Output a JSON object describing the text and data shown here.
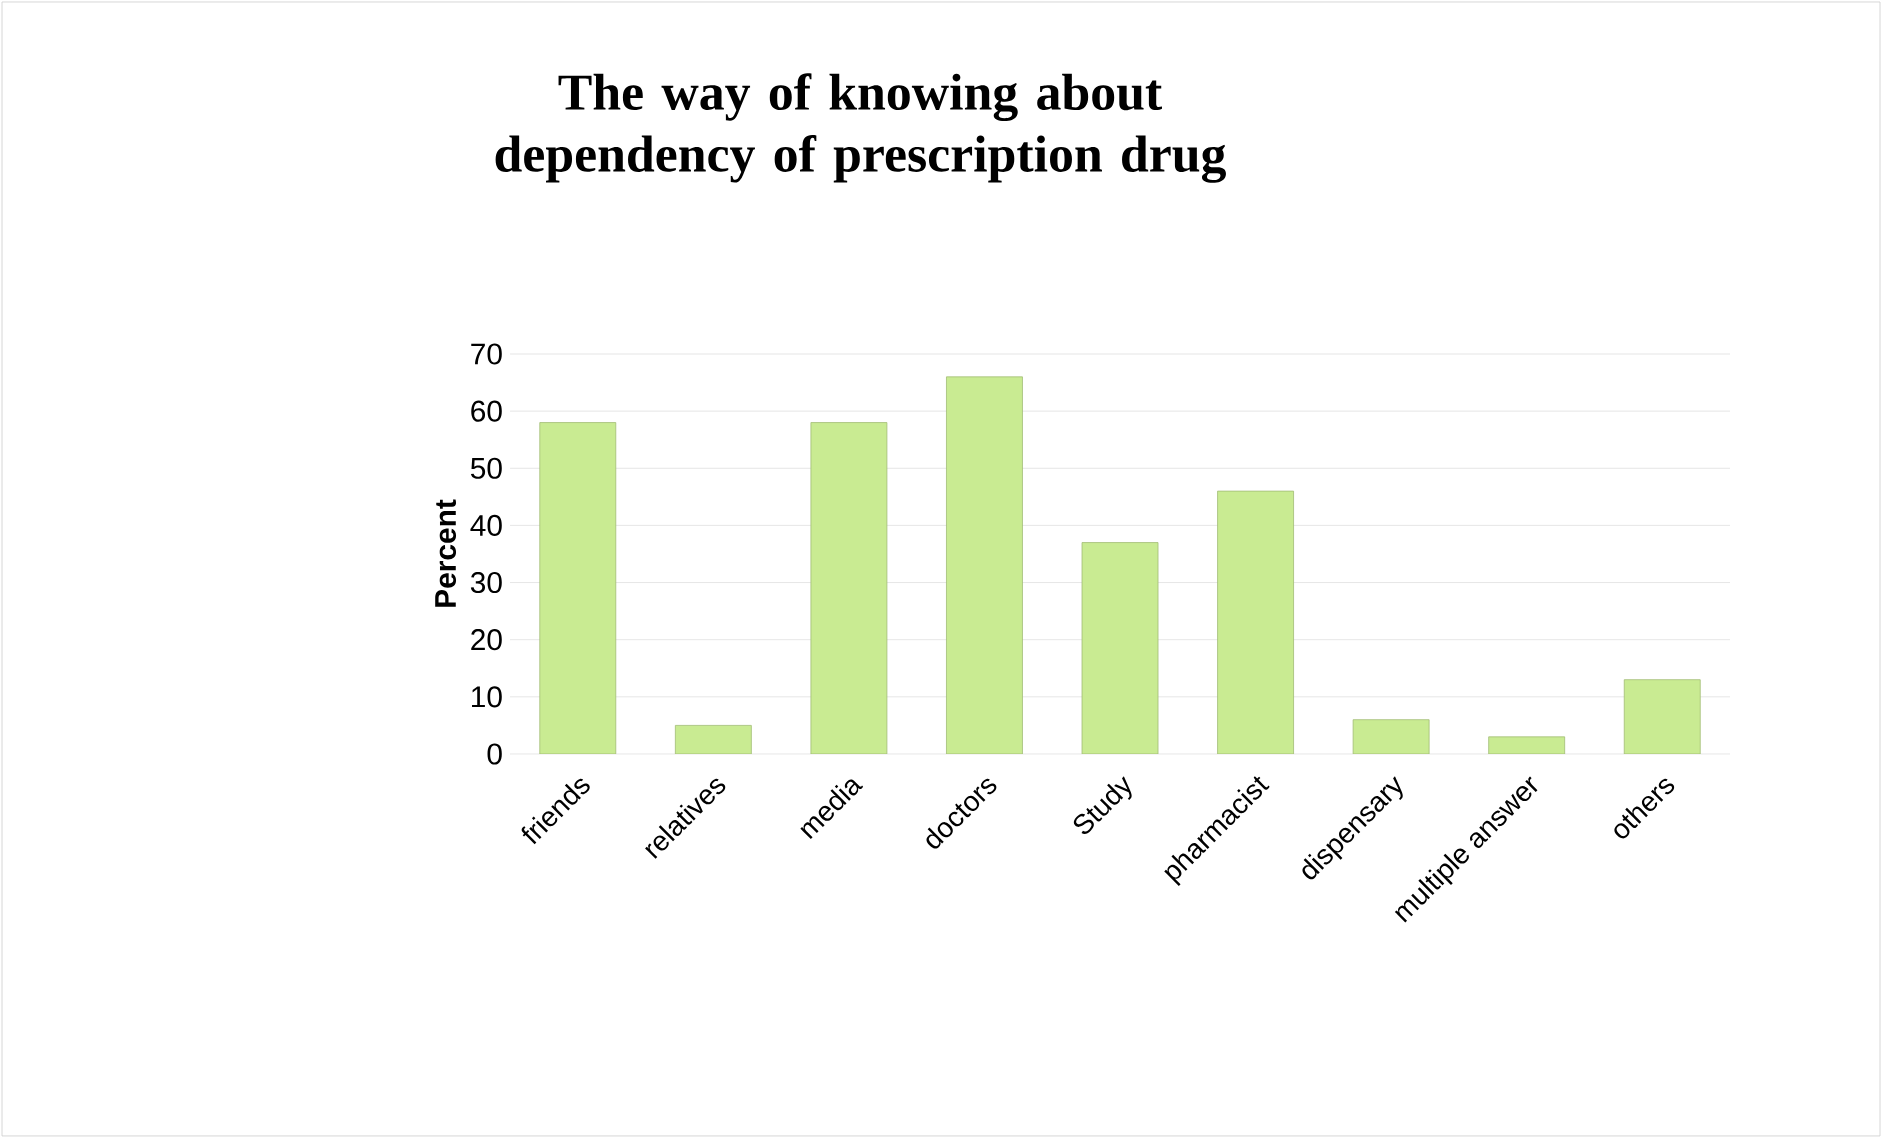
{
  "chart_data": {
    "type": "bar",
    "title": "The way of knowing about dependency of prescription drug",
    "ylabel": "Percent",
    "categories": [
      "friends",
      "relatives",
      "media",
      "doctors",
      "Study",
      "pharmacist",
      "dispensary",
      "multiple answer",
      "others"
    ],
    "values": [
      58,
      5,
      58,
      66,
      37,
      46,
      6,
      3,
      13
    ],
    "color": "#c9eb92",
    "ylim": [
      0,
      70
    ],
    "yticks": [
      0,
      10,
      20,
      30,
      40,
      50,
      60,
      70
    ],
    "grid": "y"
  }
}
